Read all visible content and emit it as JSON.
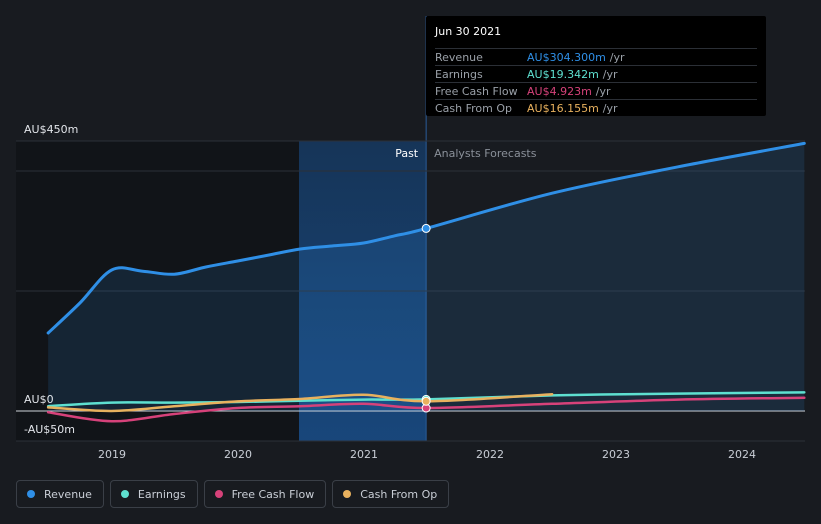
{
  "chart_data": {
    "type": "line",
    "x_ticks": [
      "2019",
      "2020",
      "2021",
      "2022",
      "2023",
      "2024"
    ],
    "y_ticks": [
      "AU$450m",
      "AU$0",
      "-AU$50m"
    ],
    "ylim": [
      -50,
      450
    ],
    "regions": {
      "past_label": "Past",
      "forecast_label": "Analysts Forecasts",
      "divider_date": "2021-06-30"
    },
    "series": [
      {
        "name": "Revenue",
        "color": "#2f8fe6",
        "area": true,
        "points": [
          [
            "2018-06-30",
            130
          ],
          [
            "2018-09-30",
            180
          ],
          [
            "2018-12-31",
            235
          ],
          [
            "2019-03-31",
            233
          ],
          [
            "2019-06-30",
            228
          ],
          [
            "2019-09-30",
            240
          ],
          [
            "2019-12-31",
            250
          ],
          [
            "2020-03-31",
            260
          ],
          [
            "2020-06-30",
            270
          ],
          [
            "2020-09-30",
            275
          ],
          [
            "2020-12-31",
            280
          ],
          [
            "2021-03-31",
            292
          ],
          [
            "2021-06-30",
            304.3
          ],
          [
            "2022-06-30",
            363
          ],
          [
            "2023-06-30",
            407
          ],
          [
            "2024-06-30",
            446
          ]
        ]
      },
      {
        "name": "Earnings",
        "color": "#5ee0d0",
        "points": [
          [
            "2018-06-30",
            8
          ],
          [
            "2018-12-31",
            14
          ],
          [
            "2019-06-30",
            14
          ],
          [
            "2019-12-31",
            15
          ],
          [
            "2020-06-30",
            17
          ],
          [
            "2020-12-31",
            19
          ],
          [
            "2021-06-30",
            19.342
          ],
          [
            "2022-06-30",
            26
          ],
          [
            "2023-06-30",
            29
          ],
          [
            "2024-06-30",
            31
          ]
        ]
      },
      {
        "name": "Free Cash Flow",
        "color": "#d6427a",
        "points": [
          [
            "2018-06-30",
            -2
          ],
          [
            "2018-12-31",
            -17
          ],
          [
            "2019-06-30",
            -5
          ],
          [
            "2019-12-31",
            5
          ],
          [
            "2020-06-30",
            8
          ],
          [
            "2020-12-31",
            12
          ],
          [
            "2021-06-30",
            4.923
          ],
          [
            "2022-06-30",
            12
          ],
          [
            "2023-06-30",
            19
          ],
          [
            "2024-06-30",
            22
          ]
        ]
      },
      {
        "name": "Cash From Op",
        "color": "#e8b15e",
        "points": [
          [
            "2018-06-30",
            6
          ],
          [
            "2018-12-31",
            0
          ],
          [
            "2019-06-30",
            8
          ],
          [
            "2019-12-31",
            16
          ],
          [
            "2020-06-30",
            20
          ],
          [
            "2020-12-31",
            27
          ],
          [
            "2021-06-30",
            16.155
          ],
          [
            "2022-06-30",
            28
          ]
        ]
      }
    ]
  },
  "tooltip": {
    "date": "Jun 30 2021",
    "rows": [
      {
        "label": "Revenue",
        "value": "AU$304.300m",
        "unit": "/yr",
        "color": "#2f8fe6"
      },
      {
        "label": "Earnings",
        "value": "AU$19.342m",
        "unit": "/yr",
        "color": "#5ee0d0"
      },
      {
        "label": "Free Cash Flow",
        "value": "AU$4.923m",
        "unit": "/yr",
        "color": "#d6427a"
      },
      {
        "label": "Cash From Op",
        "value": "AU$16.155m",
        "unit": "/yr",
        "color": "#e8b15e"
      }
    ]
  },
  "legend": [
    {
      "label": "Revenue",
      "color": "#2f8fe6"
    },
    {
      "label": "Earnings",
      "color": "#5ee0d0"
    },
    {
      "label": "Free Cash Flow",
      "color": "#d6427a"
    },
    {
      "label": "Cash From Op",
      "color": "#e8b15e"
    }
  ]
}
